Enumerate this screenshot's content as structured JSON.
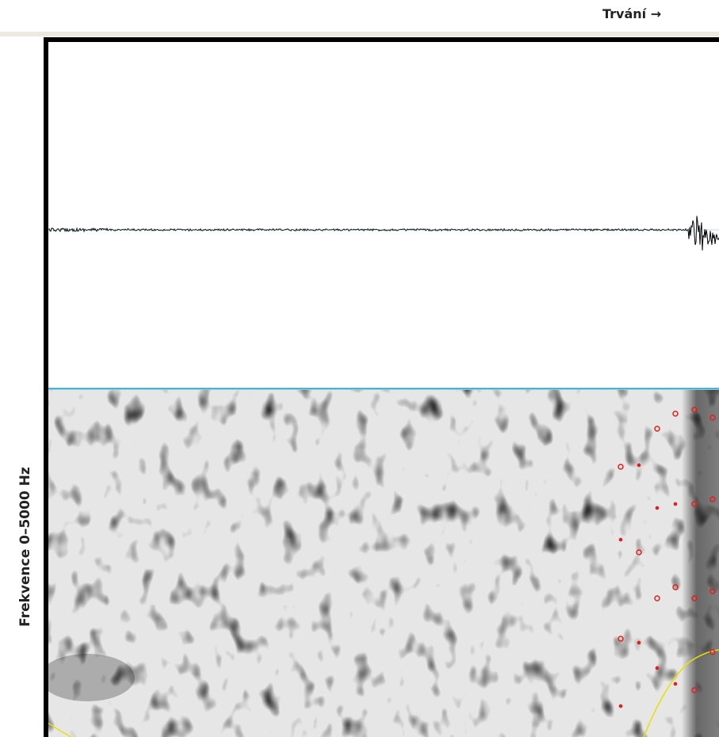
{
  "header": {
    "duration_label": "Trvání →"
  },
  "spectrogram": {
    "frequency_label": "Frekvence 0–5000 Hz"
  }
}
